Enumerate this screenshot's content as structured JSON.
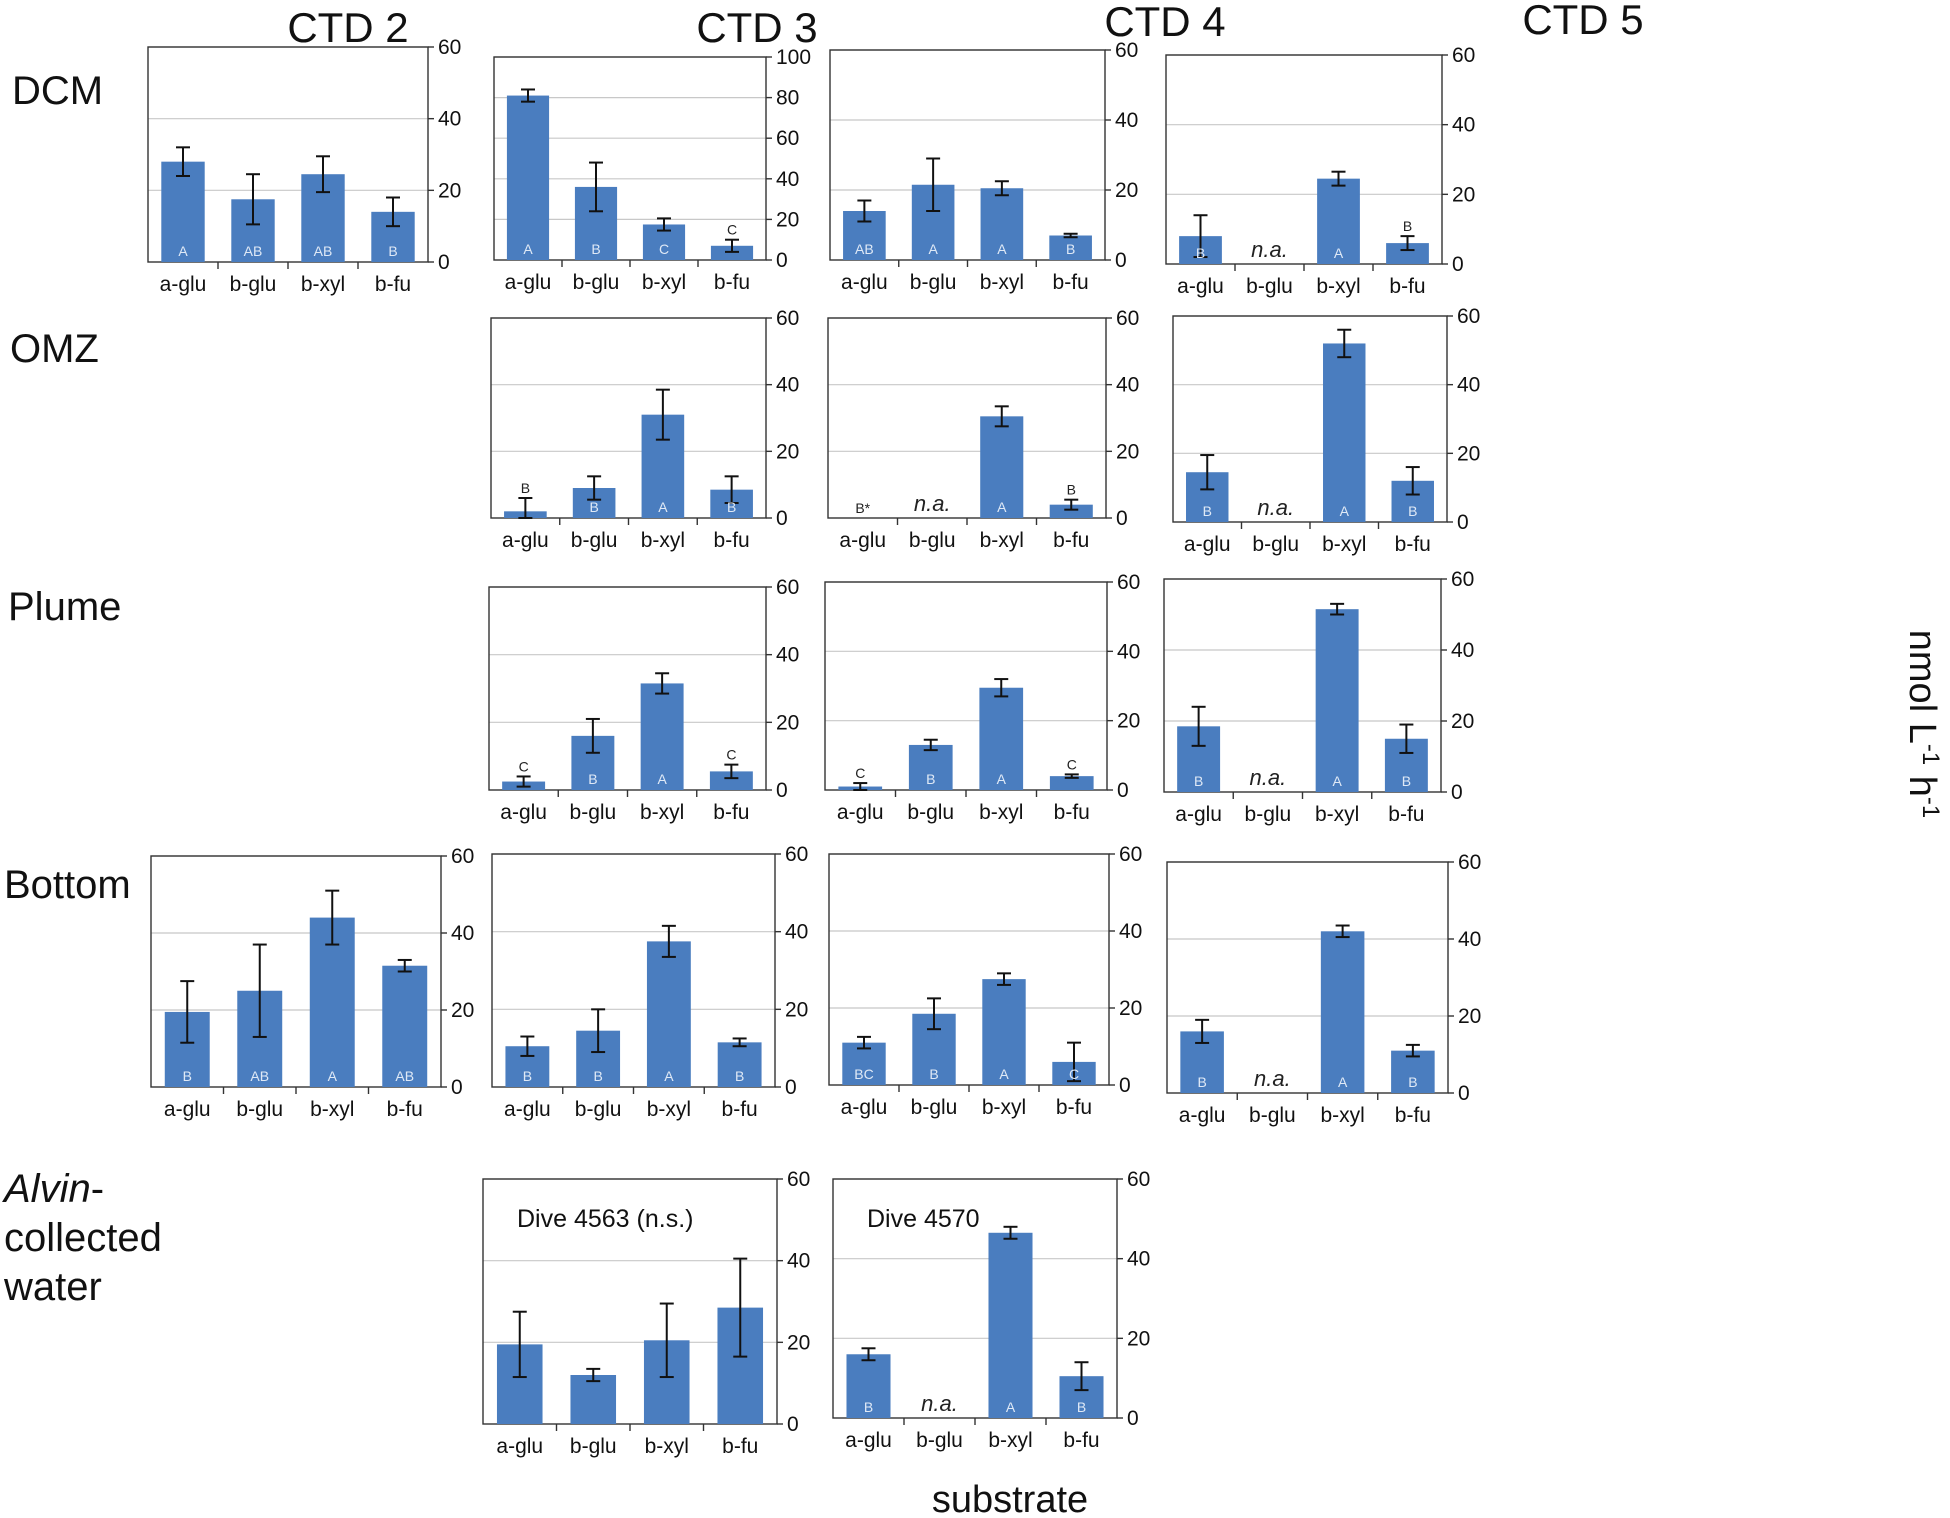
{
  "figure": {
    "column_headers": [
      "CTD 2",
      "CTD 3",
      "CTD 4",
      "CTD 5"
    ],
    "row_labels": [
      "DCM",
      "OMZ",
      "Plume",
      "Bottom"
    ],
    "alvin_label": {
      "italic": "Alvin",
      "rest": "-",
      "line2": "collected",
      "line3": "water"
    },
    "x_axis_title": "substrate",
    "y_axis_title": {
      "base": "nmol L",
      "exp1": "-1",
      "mid": " h",
      "exp2": "-1"
    },
    "na_text": "n.a.",
    "bar_color": "#4a7dbf",
    "grid_color": "#c8c8c8"
  },
  "chart_data": [
    {
      "id": "dcm-ctd2",
      "type": "bar",
      "row": "DCM",
      "column": "CTD 2",
      "categories": [
        "a-glu",
        "b-glu",
        "b-xyl",
        "b-fu"
      ],
      "values": [
        28,
        17.5,
        24.5,
        14
      ],
      "errors": [
        4,
        7,
        5,
        4
      ],
      "letters": [
        "A",
        "AB",
        "AB",
        "B"
      ],
      "ylim": [
        0,
        60
      ],
      "yticks": [
        0,
        20,
        40,
        60
      ],
      "na": [
        false,
        false,
        false,
        false
      ]
    },
    {
      "id": "dcm-ctd3",
      "type": "bar",
      "row": "DCM",
      "column": "CTD 3",
      "categories": [
        "a-glu",
        "b-glu",
        "b-xyl",
        "b-fu"
      ],
      "values": [
        81,
        36,
        17.5,
        7
      ],
      "errors": [
        3,
        12,
        3,
        3
      ],
      "letters": [
        "A",
        "B",
        "C",
        "C"
      ],
      "ylim": [
        0,
        100
      ],
      "yticks": [
        0,
        20,
        40,
        60,
        80,
        100
      ],
      "na": [
        false,
        false,
        false,
        false
      ]
    },
    {
      "id": "dcm-ctd4",
      "type": "bar",
      "row": "DCM",
      "column": "CTD 4",
      "categories": [
        "a-glu",
        "b-glu",
        "b-xyl",
        "b-fu"
      ],
      "values": [
        14,
        21.5,
        20.5,
        7
      ],
      "errors": [
        3,
        7.5,
        2,
        0.5
      ],
      "letters": [
        "AB",
        "A",
        "A",
        "B"
      ],
      "ylim": [
        0,
        60
      ],
      "yticks": [
        0,
        20,
        40,
        60
      ],
      "na": [
        false,
        false,
        false,
        false
      ]
    },
    {
      "id": "dcm-ctd5",
      "type": "bar",
      "row": "DCM",
      "column": "CTD 5",
      "categories": [
        "a-glu",
        "b-glu",
        "b-xyl",
        "b-fu"
      ],
      "values": [
        8,
        0,
        24.5,
        6
      ],
      "errors": [
        6,
        0,
        2,
        2
      ],
      "letters": [
        "B",
        "",
        "A",
        "B"
      ],
      "ylim": [
        0,
        60
      ],
      "yticks": [
        0,
        20,
        40,
        60
      ],
      "na": [
        false,
        true,
        false,
        false
      ]
    },
    {
      "id": "omz-ctd3",
      "type": "bar",
      "row": "OMZ",
      "column": "CTD 3",
      "categories": [
        "a-glu",
        "b-glu",
        "b-xyl",
        "b-fu"
      ],
      "values": [
        2,
        9,
        31,
        8.5
      ],
      "errors": [
        4,
        3.5,
        7.5,
        4
      ],
      "letters": [
        "B",
        "B",
        "A",
        "B"
      ],
      "ylim": [
        0,
        60
      ],
      "yticks": [
        0,
        20,
        40,
        60
      ],
      "na": [
        false,
        false,
        false,
        false
      ]
    },
    {
      "id": "omz-ctd4",
      "type": "bar",
      "row": "OMZ",
      "column": "CTD 4",
      "categories": [
        "a-glu",
        "b-glu",
        "b-xyl",
        "b-fu"
      ],
      "values": [
        0,
        0,
        30.5,
        4
      ],
      "errors": [
        0,
        0,
        3,
        1.5
      ],
      "letters": [
        "B*",
        "",
        "A",
        "B"
      ],
      "ylim": [
        0,
        60
      ],
      "yticks": [
        0,
        20,
        40,
        60
      ],
      "na": [
        false,
        true,
        false,
        false
      ]
    },
    {
      "id": "omz-ctd5",
      "type": "bar",
      "row": "OMZ",
      "column": "CTD 5",
      "categories": [
        "a-glu",
        "b-glu",
        "b-xyl",
        "b-fu"
      ],
      "values": [
        14.5,
        0,
        52,
        12
      ],
      "errors": [
        5,
        0,
        4,
        4
      ],
      "letters": [
        "B",
        "",
        "A",
        "B"
      ],
      "ylim": [
        0,
        60
      ],
      "yticks": [
        0,
        20,
        40,
        60
      ],
      "na": [
        false,
        true,
        false,
        false
      ]
    },
    {
      "id": "plume-ctd3",
      "type": "bar",
      "row": "Plume",
      "column": "CTD 3",
      "categories": [
        "a-glu",
        "b-glu",
        "b-xyl",
        "b-fu"
      ],
      "values": [
        2.5,
        16,
        31.5,
        5.5
      ],
      "errors": [
        1.5,
        5,
        3,
        2
      ],
      "letters": [
        "C",
        "B",
        "A",
        "C"
      ],
      "ylim": [
        0,
        60
      ],
      "yticks": [
        0,
        20,
        40,
        60
      ],
      "na": [
        false,
        false,
        false,
        false
      ]
    },
    {
      "id": "plume-ctd4",
      "type": "bar",
      "row": "Plume",
      "column": "CTD 4",
      "categories": [
        "a-glu",
        "b-glu",
        "b-xyl",
        "b-fu"
      ],
      "values": [
        1,
        13,
        29.5,
        4
      ],
      "errors": [
        1,
        1.5,
        2.5,
        0.5
      ],
      "letters": [
        "C",
        "B",
        "A",
        "C"
      ],
      "ylim": [
        0,
        60
      ],
      "yticks": [
        0,
        20,
        40,
        60
      ],
      "na": [
        false,
        false,
        false,
        false
      ]
    },
    {
      "id": "plume-ctd5",
      "type": "bar",
      "row": "Plume",
      "column": "CTD 5",
      "categories": [
        "a-glu",
        "b-glu",
        "b-xyl",
        "b-fu"
      ],
      "values": [
        18.5,
        0,
        51.5,
        15
      ],
      "errors": [
        5.5,
        0,
        1.5,
        4
      ],
      "letters": [
        "B",
        "",
        "A",
        "B"
      ],
      "ylim": [
        0,
        60
      ],
      "yticks": [
        0,
        20,
        40,
        60
      ],
      "na": [
        false,
        true,
        false,
        false
      ]
    },
    {
      "id": "bottom-ctd2",
      "type": "bar",
      "row": "Bottom",
      "column": "CTD 2",
      "categories": [
        "a-glu",
        "b-glu",
        "b-xyl",
        "b-fu"
      ],
      "values": [
        19.5,
        25,
        44,
        31.5
      ],
      "errors": [
        8,
        12,
        7,
        1.5
      ],
      "letters": [
        "B",
        "AB",
        "A",
        "AB"
      ],
      "ylim": [
        0,
        60
      ],
      "yticks": [
        0,
        20,
        40,
        60
      ],
      "na": [
        false,
        false,
        false,
        false
      ]
    },
    {
      "id": "bottom-ctd3",
      "type": "bar",
      "row": "Bottom",
      "column": "CTD 3",
      "categories": [
        "a-glu",
        "b-glu",
        "b-xyl",
        "b-fu"
      ],
      "values": [
        10.5,
        14.5,
        37.5,
        11.5
      ],
      "errors": [
        2.5,
        5.5,
        4,
        1
      ],
      "letters": [
        "B",
        "B",
        "A",
        "B"
      ],
      "ylim": [
        0,
        60
      ],
      "yticks": [
        0,
        20,
        40,
        60
      ],
      "na": [
        false,
        false,
        false,
        false
      ]
    },
    {
      "id": "bottom-ctd4",
      "type": "bar",
      "row": "Bottom",
      "column": "CTD 4",
      "categories": [
        "a-glu",
        "b-glu",
        "b-xyl",
        "b-fu"
      ],
      "values": [
        11,
        18.5,
        27.5,
        6
      ],
      "errors": [
        1.5,
        4,
        1.5,
        5
      ],
      "letters": [
        "BC",
        "B",
        "A",
        "C"
      ],
      "ylim": [
        0,
        60
      ],
      "yticks": [
        0,
        20,
        40,
        60
      ],
      "na": [
        false,
        false,
        false,
        false
      ]
    },
    {
      "id": "bottom-ctd5",
      "type": "bar",
      "row": "Bottom",
      "column": "CTD 5",
      "categories": [
        "a-glu",
        "b-glu",
        "b-xyl",
        "b-fu"
      ],
      "values": [
        16,
        0,
        42,
        11
      ],
      "errors": [
        3,
        0,
        1.5,
        1.5
      ],
      "letters": [
        "B",
        "",
        "A",
        "B"
      ],
      "ylim": [
        0,
        60
      ],
      "yticks": [
        0,
        20,
        40,
        60
      ],
      "na": [
        false,
        true,
        false,
        false
      ]
    },
    {
      "id": "alvin-4563",
      "type": "bar",
      "row": "Alvin-collected water",
      "annotation": "Dive  4563  (n.s.)",
      "categories": [
        "a-glu",
        "b-glu",
        "b-xyl",
        "b-fu"
      ],
      "values": [
        19.5,
        12,
        20.5,
        28.5
      ],
      "errors": [
        8,
        1.5,
        9,
        12
      ],
      "letters": [
        "",
        "",
        "",
        ""
      ],
      "ylim": [
        0,
        60
      ],
      "yticks": [
        0,
        20,
        40,
        60
      ],
      "na": [
        false,
        false,
        false,
        false
      ]
    },
    {
      "id": "alvin-4570",
      "type": "bar",
      "row": "Alvin-collected water",
      "annotation": "Dive  4570",
      "categories": [
        "a-glu",
        "b-glu",
        "b-xyl",
        "b-fu"
      ],
      "values": [
        16,
        0,
        46.5,
        10.5
      ],
      "errors": [
        1.5,
        0,
        1.5,
        3.5
      ],
      "letters": [
        "B",
        "",
        "A",
        "B"
      ],
      "ylim": [
        0,
        60
      ],
      "yticks": [
        0,
        20,
        40,
        60
      ],
      "na": [
        false,
        true,
        false,
        false
      ]
    }
  ]
}
